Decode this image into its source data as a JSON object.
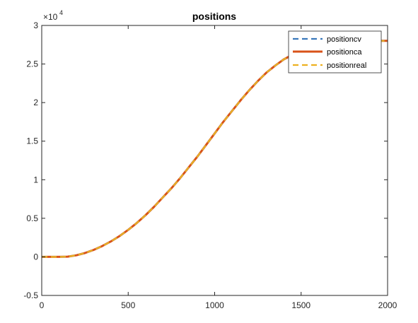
{
  "chart_data": {
    "type": "line",
    "title": "positions",
    "xlabel": "",
    "ylabel": "",
    "xlim": [
      0,
      2000
    ],
    "ylim": [
      -0.5,
      3
    ],
    "y_multiplier": {
      "base": "×10",
      "exponent": "4"
    },
    "x_ticks": [
      0,
      500,
      1000,
      1500,
      2000
    ],
    "x_tick_labels": [
      "0",
      "500",
      "1000",
      "1500",
      "2000"
    ],
    "y_ticks": [
      -0.5,
      0,
      0.5,
      1,
      1.5,
      2,
      2.5,
      3
    ],
    "y_tick_labels": [
      "-0.5",
      "0",
      "0.5",
      "1",
      "1.5",
      "2",
      "2.5",
      "3"
    ],
    "grid": false,
    "legend_position": "top-right",
    "x": [
      0,
      100,
      150,
      200,
      250,
      300,
      350,
      400,
      450,
      500,
      550,
      600,
      650,
      700,
      750,
      800,
      850,
      900,
      950,
      1000,
      1050,
      1100,
      1150,
      1200,
      1250,
      1300,
      1350,
      1400,
      1450,
      1500,
      1550,
      1600,
      1650,
      1700,
      1750,
      1800,
      1850,
      1900,
      1950,
      2000
    ],
    "series": [
      {
        "name": "positioncv",
        "style": "dashed",
        "color": "#3A78BC",
        "values": [
          0,
          0,
          0.003,
          0.02,
          0.05,
          0.09,
          0.14,
          0.2,
          0.27,
          0.35,
          0.44,
          0.54,
          0.65,
          0.77,
          0.89,
          1.02,
          1.16,
          1.3,
          1.45,
          1.6,
          1.75,
          1.89,
          2.03,
          2.16,
          2.28,
          2.39,
          2.48,
          2.56,
          2.62,
          2.67,
          2.71,
          2.74,
          2.76,
          2.78,
          2.79,
          2.8,
          2.8,
          2.8,
          2.8,
          2.8
        ]
      },
      {
        "name": "positionca",
        "style": "solid",
        "color": "#D95319",
        "values": [
          0,
          0,
          0.003,
          0.02,
          0.05,
          0.09,
          0.14,
          0.2,
          0.27,
          0.35,
          0.44,
          0.54,
          0.65,
          0.77,
          0.89,
          1.02,
          1.16,
          1.3,
          1.45,
          1.6,
          1.75,
          1.89,
          2.03,
          2.16,
          2.28,
          2.39,
          2.48,
          2.56,
          2.62,
          2.67,
          2.71,
          2.74,
          2.76,
          2.78,
          2.79,
          2.8,
          2.8,
          2.8,
          2.8,
          2.8
        ]
      },
      {
        "name": "positionreal",
        "style": "dashed",
        "color": "#EDB120",
        "values": [
          0,
          0,
          0.003,
          0.02,
          0.05,
          0.09,
          0.14,
          0.2,
          0.27,
          0.35,
          0.44,
          0.54,
          0.65,
          0.77,
          0.89,
          1.02,
          1.16,
          1.3,
          1.45,
          1.6,
          1.75,
          1.89,
          2.03,
          2.16,
          2.28,
          2.39,
          2.48,
          2.56,
          2.62,
          2.67,
          2.71,
          2.74,
          2.76,
          2.78,
          2.79,
          2.8,
          2.8,
          2.8,
          2.8,
          2.8
        ]
      }
    ]
  }
}
